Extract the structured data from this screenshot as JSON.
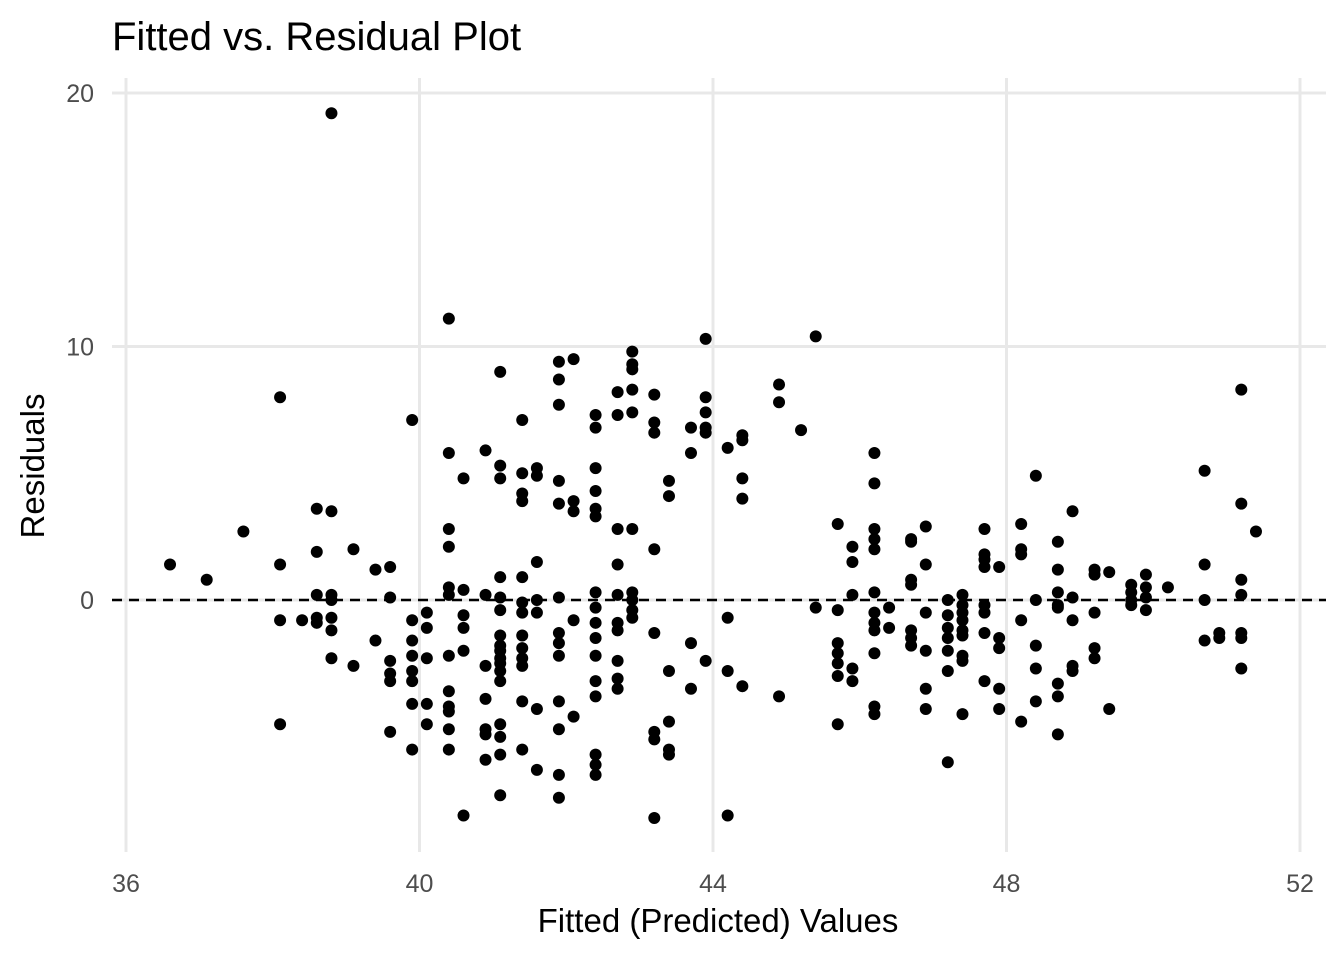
{
  "chart_data": {
    "type": "scatter",
    "title": "Fitted vs. Residual Plot",
    "xlabel": "Fitted (Predicted) Values",
    "ylabel": "Residuals",
    "xlim": [
      36,
      52.3
    ],
    "ylim": [
      -9.9,
      20.2
    ],
    "x_ticks": [
      36,
      40,
      44,
      48,
      52
    ],
    "y_ticks": [
      0,
      10,
      20
    ],
    "x_tick_labels": [
      "36",
      "40",
      "44",
      "48",
      "52"
    ],
    "y_tick_labels": [
      "0",
      "10",
      "20"
    ],
    "grid": true,
    "reference_line": {
      "y": 0,
      "style": "dashed"
    },
    "colors": {
      "points": "#000000",
      "grid": "#e8e8e8",
      "tick_labels": "#4d4d4d"
    },
    "points": [
      [
        36.6,
        1.4
      ],
      [
        37.1,
        0.8
      ],
      [
        37.6,
        2.7
      ],
      [
        38.1,
        8.0
      ],
      [
        38.1,
        1.4
      ],
      [
        38.1,
        -0.8
      ],
      [
        38.1,
        -4.9
      ],
      [
        38.4,
        -0.8
      ],
      [
        38.6,
        3.6
      ],
      [
        38.6,
        1.9
      ],
      [
        38.6,
        0.2
      ],
      [
        38.6,
        -0.7
      ],
      [
        38.6,
        -0.9
      ],
      [
        38.8,
        19.2
      ],
      [
        38.8,
        3.5
      ],
      [
        38.8,
        0.2
      ],
      [
        38.8,
        0.0
      ],
      [
        38.8,
        -0.7
      ],
      [
        38.8,
        -1.2
      ],
      [
        38.8,
        -2.3
      ],
      [
        39.1,
        2.0
      ],
      [
        39.1,
        -2.6
      ],
      [
        39.4,
        1.2
      ],
      [
        39.4,
        -1.6
      ],
      [
        39.6,
        1.3
      ],
      [
        39.6,
        0.1
      ],
      [
        39.6,
        -2.4
      ],
      [
        39.6,
        -2.9
      ],
      [
        39.6,
        -3.2
      ],
      [
        39.6,
        -5.2
      ],
      [
        39.9,
        7.1
      ],
      [
        39.9,
        -0.8
      ],
      [
        39.9,
        -1.6
      ],
      [
        39.9,
        -2.2
      ],
      [
        39.9,
        -2.8
      ],
      [
        39.9,
        -3.2
      ],
      [
        39.9,
        -4.1
      ],
      [
        39.9,
        -5.9
      ],
      [
        40.1,
        -0.5
      ],
      [
        40.1,
        -1.1
      ],
      [
        40.1,
        -2.3
      ],
      [
        40.1,
        -4.1
      ],
      [
        40.1,
        -4.9
      ],
      [
        40.4,
        11.1
      ],
      [
        40.4,
        5.8
      ],
      [
        40.4,
        2.8
      ],
      [
        40.4,
        2.1
      ],
      [
        40.4,
        0.5
      ],
      [
        40.4,
        0.2
      ],
      [
        40.4,
        -2.2
      ],
      [
        40.4,
        -3.6
      ],
      [
        40.4,
        -4.2
      ],
      [
        40.4,
        -4.4
      ],
      [
        40.4,
        -5.1
      ],
      [
        40.4,
        -5.9
      ],
      [
        40.6,
        4.8
      ],
      [
        40.6,
        0.4
      ],
      [
        40.6,
        -0.6
      ],
      [
        40.6,
        -1.1
      ],
      [
        40.6,
        -2.0
      ],
      [
        40.6,
        -8.5
      ],
      [
        40.9,
        5.9
      ],
      [
        40.9,
        0.2
      ],
      [
        40.9,
        -2.6
      ],
      [
        40.9,
        -3.9
      ],
      [
        40.9,
        -5.1
      ],
      [
        40.9,
        -5.3
      ],
      [
        40.9,
        -6.3
      ],
      [
        41.1,
        9.0
      ],
      [
        41.1,
        5.3
      ],
      [
        41.1,
        4.8
      ],
      [
        41.1,
        0.9
      ],
      [
        41.1,
        0.1
      ],
      [
        41.1,
        -0.4
      ],
      [
        41.1,
        -1.4
      ],
      [
        41.1,
        -1.8
      ],
      [
        41.1,
        -2.0
      ],
      [
        41.1,
        -2.3
      ],
      [
        41.1,
        -2.5
      ],
      [
        41.1,
        -2.8
      ],
      [
        41.1,
        -3.2
      ],
      [
        41.1,
        -4.9
      ],
      [
        41.1,
        -5.4
      ],
      [
        41.1,
        -6.1
      ],
      [
        41.1,
        -7.7
      ],
      [
        41.4,
        7.1
      ],
      [
        41.4,
        5.0
      ],
      [
        41.4,
        4.2
      ],
      [
        41.4,
        3.9
      ],
      [
        41.4,
        0.9
      ],
      [
        41.4,
        -0.1
      ],
      [
        41.4,
        -0.5
      ],
      [
        41.4,
        -1.4
      ],
      [
        41.4,
        -1.9
      ],
      [
        41.4,
        -2.3
      ],
      [
        41.4,
        -2.6
      ],
      [
        41.4,
        -4.0
      ],
      [
        41.4,
        -5.9
      ],
      [
        41.6,
        5.2
      ],
      [
        41.6,
        4.9
      ],
      [
        41.6,
        1.5
      ],
      [
        41.6,
        0.0
      ],
      [
        41.6,
        -0.5
      ],
      [
        41.6,
        -4.3
      ],
      [
        41.6,
        -6.7
      ],
      [
        41.9,
        9.4
      ],
      [
        41.9,
        8.7
      ],
      [
        41.9,
        7.7
      ],
      [
        41.9,
        4.7
      ],
      [
        41.9,
        3.8
      ],
      [
        41.9,
        0.1
      ],
      [
        41.9,
        -1.3
      ],
      [
        41.9,
        -1.7
      ],
      [
        41.9,
        -2.2
      ],
      [
        41.9,
        -4.0
      ],
      [
        41.9,
        -5.1
      ],
      [
        41.9,
        -6.9
      ],
      [
        41.9,
        -7.8
      ],
      [
        42.1,
        9.5
      ],
      [
        42.1,
        3.9
      ],
      [
        42.1,
        3.5
      ],
      [
        42.1,
        -0.8
      ],
      [
        42.1,
        -4.6
      ],
      [
        42.4,
        7.3
      ],
      [
        42.4,
        6.8
      ],
      [
        42.4,
        5.2
      ],
      [
        42.4,
        4.3
      ],
      [
        42.4,
        3.6
      ],
      [
        42.4,
        3.3
      ],
      [
        42.4,
        0.3
      ],
      [
        42.4,
        -0.3
      ],
      [
        42.4,
        -0.9
      ],
      [
        42.4,
        -1.5
      ],
      [
        42.4,
        -2.2
      ],
      [
        42.4,
        -3.2
      ],
      [
        42.4,
        -3.8
      ],
      [
        42.4,
        -6.1
      ],
      [
        42.4,
        -6.5
      ],
      [
        42.4,
        -6.9
      ],
      [
        42.7,
        8.2
      ],
      [
        42.7,
        7.3
      ],
      [
        42.7,
        2.8
      ],
      [
        42.7,
        1.4
      ],
      [
        42.7,
        0.2
      ],
      [
        42.7,
        -0.9
      ],
      [
        42.7,
        -1.2
      ],
      [
        42.7,
        -2.4
      ],
      [
        42.7,
        -3.1
      ],
      [
        42.7,
        -3.5
      ],
      [
        42.9,
        9.8
      ],
      [
        42.9,
        9.3
      ],
      [
        42.9,
        9.1
      ],
      [
        42.9,
        8.3
      ],
      [
        42.9,
        7.4
      ],
      [
        42.9,
        2.8
      ],
      [
        42.9,
        0.3
      ],
      [
        42.9,
        0.0
      ],
      [
        42.9,
        -0.4
      ],
      [
        42.9,
        -0.7
      ],
      [
        43.2,
        8.1
      ],
      [
        43.2,
        7.0
      ],
      [
        43.2,
        6.6
      ],
      [
        43.2,
        2.0
      ],
      [
        43.2,
        -1.3
      ],
      [
        43.2,
        -5.2
      ],
      [
        43.2,
        -5.5
      ],
      [
        43.2,
        -8.6
      ],
      [
        43.4,
        4.7
      ],
      [
        43.4,
        4.1
      ],
      [
        43.4,
        -2.8
      ],
      [
        43.4,
        -4.8
      ],
      [
        43.4,
        -5.9
      ],
      [
        43.4,
        -6.1
      ],
      [
        43.7,
        6.8
      ],
      [
        43.7,
        5.8
      ],
      [
        43.7,
        -1.7
      ],
      [
        43.7,
        -3.5
      ],
      [
        43.9,
        10.3
      ],
      [
        43.9,
        8.0
      ],
      [
        43.9,
        7.4
      ],
      [
        43.9,
        6.8
      ],
      [
        43.9,
        6.6
      ],
      [
        43.9,
        -2.4
      ],
      [
        44.2,
        6.0
      ],
      [
        44.2,
        -0.7
      ],
      [
        44.2,
        -2.8
      ],
      [
        44.2,
        -8.5
      ],
      [
        44.4,
        6.5
      ],
      [
        44.4,
        6.3
      ],
      [
        44.4,
        4.8
      ],
      [
        44.4,
        4.0
      ],
      [
        44.4,
        -3.4
      ],
      [
        44.9,
        8.5
      ],
      [
        44.9,
        7.8
      ],
      [
        44.9,
        -3.8
      ],
      [
        45.2,
        6.7
      ],
      [
        45.4,
        10.4
      ],
      [
        45.4,
        -0.3
      ],
      [
        45.7,
        3.0
      ],
      [
        45.7,
        -0.4
      ],
      [
        45.7,
        -1.7
      ],
      [
        45.7,
        -2.1
      ],
      [
        45.7,
        -2.5
      ],
      [
        45.7,
        -3.0
      ],
      [
        45.7,
        -4.9
      ],
      [
        45.9,
        2.1
      ],
      [
        45.9,
        1.5
      ],
      [
        45.9,
        0.2
      ],
      [
        45.9,
        -2.7
      ],
      [
        45.9,
        -3.2
      ],
      [
        46.2,
        5.8
      ],
      [
        46.2,
        4.6
      ],
      [
        46.2,
        2.8
      ],
      [
        46.2,
        2.4
      ],
      [
        46.2,
        2.0
      ],
      [
        46.2,
        0.3
      ],
      [
        46.2,
        -0.5
      ],
      [
        46.2,
        -0.9
      ],
      [
        46.2,
        -1.2
      ],
      [
        46.2,
        -2.1
      ],
      [
        46.2,
        -4.2
      ],
      [
        46.2,
        -4.5
      ],
      [
        46.4,
        -0.3
      ],
      [
        46.4,
        -1.1
      ],
      [
        46.7,
        2.4
      ],
      [
        46.7,
        2.3
      ],
      [
        46.7,
        0.8
      ],
      [
        46.7,
        0.6
      ],
      [
        46.7,
        -1.2
      ],
      [
        46.7,
        -1.5
      ],
      [
        46.7,
        -1.8
      ],
      [
        46.9,
        2.9
      ],
      [
        46.9,
        1.4
      ],
      [
        46.9,
        -0.5
      ],
      [
        46.9,
        -2.0
      ],
      [
        46.9,
        -3.5
      ],
      [
        46.9,
        -4.3
      ],
      [
        47.2,
        0.0
      ],
      [
        47.2,
        -0.6
      ],
      [
        47.2,
        -1.1
      ],
      [
        47.2,
        -1.5
      ],
      [
        47.2,
        -2.0
      ],
      [
        47.2,
        -2.8
      ],
      [
        47.2,
        -6.4
      ],
      [
        47.4,
        0.2
      ],
      [
        47.4,
        -0.2
      ],
      [
        47.4,
        -0.5
      ],
      [
        47.4,
        -0.8
      ],
      [
        47.4,
        -1.2
      ],
      [
        47.4,
        -1.4
      ],
      [
        47.4,
        -2.2
      ],
      [
        47.4,
        -2.4
      ],
      [
        47.4,
        -4.5
      ],
      [
        47.7,
        2.8
      ],
      [
        47.7,
        1.8
      ],
      [
        47.7,
        1.6
      ],
      [
        47.7,
        1.3
      ],
      [
        47.7,
        -0.2
      ],
      [
        47.7,
        -0.5
      ],
      [
        47.7,
        -1.3
      ],
      [
        47.7,
        -3.2
      ],
      [
        47.9,
        1.3
      ],
      [
        47.9,
        -1.5
      ],
      [
        47.9,
        -1.9
      ],
      [
        47.9,
        -3.5
      ],
      [
        47.9,
        -4.3
      ],
      [
        48.2,
        3.0
      ],
      [
        48.2,
        2.0
      ],
      [
        48.2,
        1.8
      ],
      [
        48.2,
        -0.8
      ],
      [
        48.2,
        -4.8
      ],
      [
        48.4,
        4.9
      ],
      [
        48.4,
        0.0
      ],
      [
        48.4,
        -1.8
      ],
      [
        48.4,
        -2.7
      ],
      [
        48.4,
        -4.0
      ],
      [
        48.7,
        2.3
      ],
      [
        48.7,
        1.2
      ],
      [
        48.7,
        0.3
      ],
      [
        48.7,
        -0.2
      ],
      [
        48.7,
        -0.3
      ],
      [
        48.7,
        -3.3
      ],
      [
        48.7,
        -3.8
      ],
      [
        48.7,
        -5.3
      ],
      [
        48.9,
        3.5
      ],
      [
        48.9,
        0.1
      ],
      [
        48.9,
        -0.8
      ],
      [
        48.9,
        -2.6
      ],
      [
        48.9,
        -2.8
      ],
      [
        49.2,
        1.2
      ],
      [
        49.2,
        1.0
      ],
      [
        49.2,
        -0.5
      ],
      [
        49.2,
        -1.9
      ],
      [
        49.2,
        -2.3
      ],
      [
        49.4,
        1.1
      ],
      [
        49.4,
        -4.3
      ],
      [
        49.7,
        0.6
      ],
      [
        49.7,
        0.3
      ],
      [
        49.7,
        0.0
      ],
      [
        49.7,
        -0.2
      ],
      [
        49.9,
        1.0
      ],
      [
        49.9,
        0.5
      ],
      [
        49.9,
        0.1
      ],
      [
        49.9,
        -0.4
      ],
      [
        50.2,
        0.5
      ],
      [
        50.7,
        5.1
      ],
      [
        50.7,
        1.4
      ],
      [
        50.7,
        0.0
      ],
      [
        50.7,
        -1.6
      ],
      [
        50.9,
        -1.3
      ],
      [
        50.9,
        -1.5
      ],
      [
        51.2,
        8.3
      ],
      [
        51.2,
        3.8
      ],
      [
        51.2,
        0.8
      ],
      [
        51.2,
        0.2
      ],
      [
        51.2,
        -1.3
      ],
      [
        51.2,
        -1.5
      ],
      [
        51.2,
        -2.7
      ],
      [
        51.4,
        2.7
      ]
    ]
  }
}
